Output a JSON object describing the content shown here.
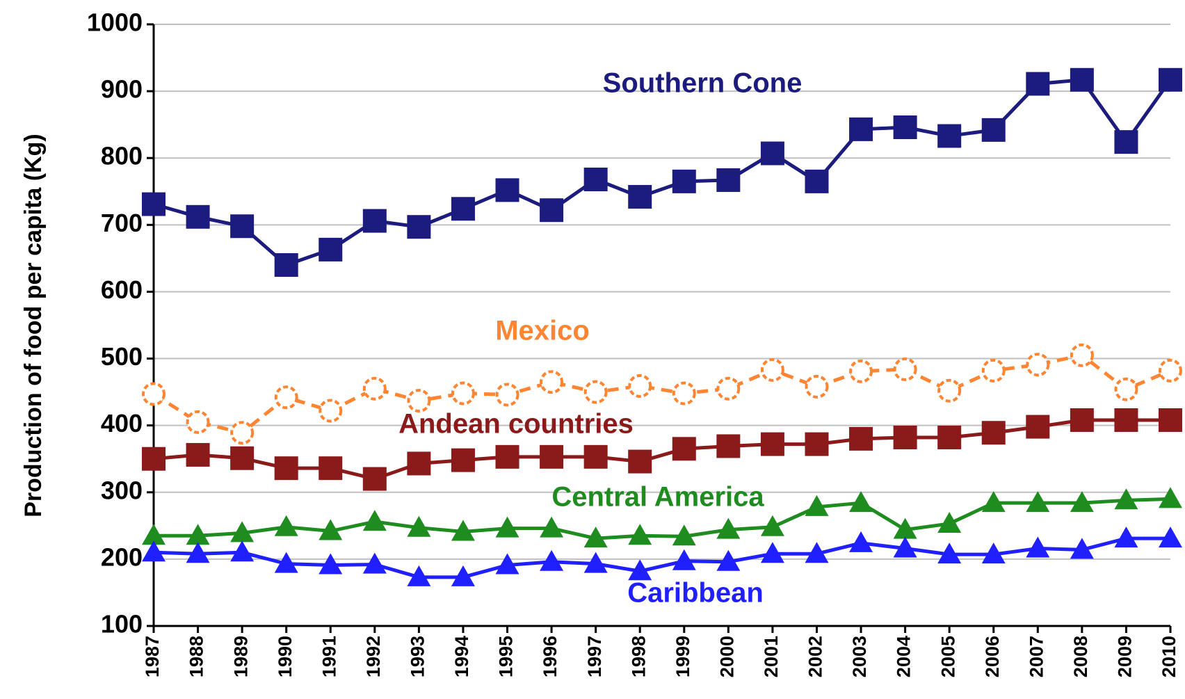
{
  "chart_data": {
    "type": "line",
    "y_label": "Production of food per capita (Kg)",
    "categories": [
      "1987",
      "1988",
      "1989",
      "1990",
      "1991",
      "1992",
      "1993",
      "1994",
      "1995",
      "1996",
      "1997",
      "1998",
      "1999",
      "2000",
      "2001",
      "2002",
      "2003",
      "2004",
      "2005",
      "2006",
      "2007",
      "2008",
      "2009",
      "2010"
    ],
    "ylim": [
      100,
      1000
    ],
    "yticks": [
      100,
      200,
      300,
      400,
      500,
      600,
      700,
      800,
      900,
      1000
    ],
    "grid": true,
    "series": [
      {
        "name": "Southern Cone",
        "color": "#1c1c7e",
        "marker": "square",
        "dashed": false,
        "values": [
          731,
          712,
          698,
          640,
          663,
          706,
          697,
          724,
          752,
          722,
          768,
          742,
          765,
          767,
          807,
          765,
          843,
          846,
          833,
          842,
          911,
          917,
          824,
          917
        ]
      },
      {
        "name": "Mexico",
        "color": "#ff8533",
        "marker": "circle",
        "dashed": true,
        "values": [
          447,
          405,
          389,
          442,
          422,
          455,
          437,
          448,
          446,
          465,
          450,
          459,
          448,
          455,
          483,
          458,
          481,
          484,
          452,
          482,
          491,
          505,
          454,
          482
        ]
      },
      {
        "name": "Andean countries",
        "color": "#8b1a1a",
        "marker": "square",
        "dashed": false,
        "values": [
          350,
          356,
          351,
          336,
          336,
          320,
          343,
          348,
          353,
          353,
          353,
          346,
          365,
          369,
          372,
          372,
          380,
          382,
          382,
          389,
          398,
          408,
          408,
          408
        ]
      },
      {
        "name": "Central America",
        "color": "#1e8c1e",
        "marker": "triangle",
        "dashed": false,
        "values": [
          235,
          235,
          239,
          248,
          242,
          256,
          247,
          241,
          246,
          246,
          231,
          235,
          234,
          244,
          248,
          278,
          284,
          244,
          253,
          284,
          284,
          284,
          288,
          290
        ]
      },
      {
        "name": "Caribbean",
        "color": "#1f1fff",
        "marker": "triangle",
        "dashed": false,
        "values": [
          210,
          208,
          210,
          193,
          191,
          192,
          173,
          173,
          191,
          196,
          193,
          182,
          197,
          196,
          208,
          208,
          224,
          216,
          207,
          207,
          216,
          214,
          231,
          231
        ]
      }
    ]
  }
}
